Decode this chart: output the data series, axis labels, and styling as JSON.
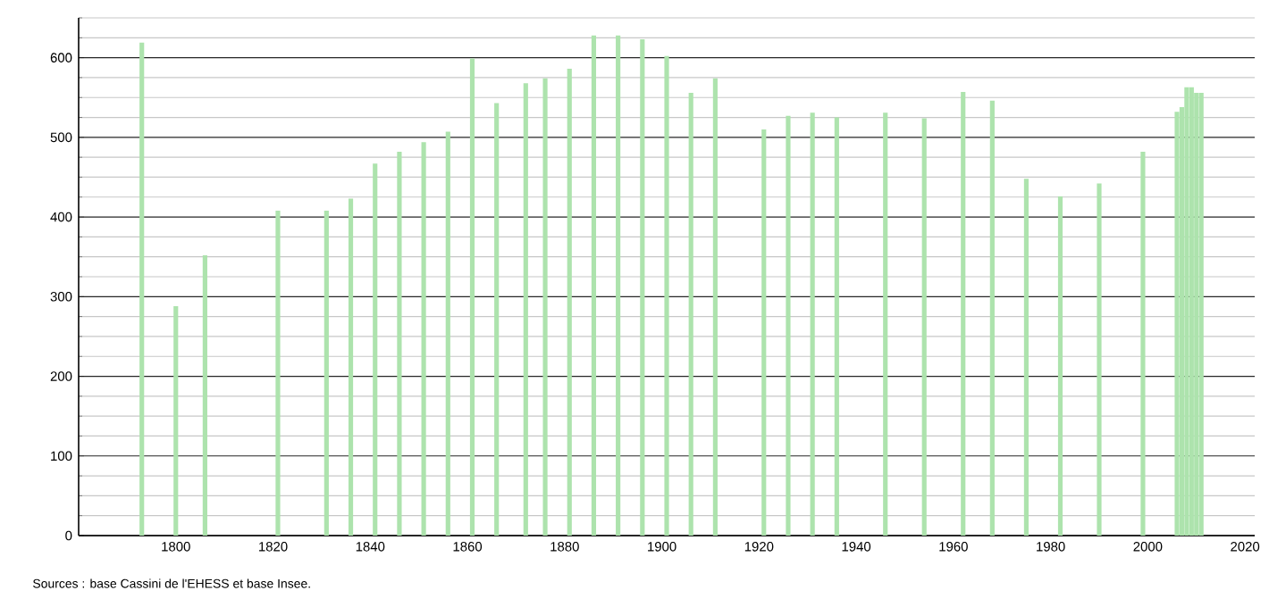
{
  "chart_data": {
    "type": "bar",
    "color": "#ade3ad",
    "x": [
      1793,
      1800,
      1806,
      1821,
      1831,
      1836,
      1841,
      1846,
      1851,
      1856,
      1861,
      1866,
      1872,
      1876,
      1881,
      1886,
      1891,
      1896,
      1901,
      1906,
      1911,
      1921,
      1926,
      1931,
      1936,
      1946,
      1954,
      1962,
      1968,
      1975,
      1982,
      1990,
      1999,
      2006,
      2007,
      2008,
      2009,
      2010,
      2011
    ],
    "values": [
      619,
      288,
      352,
      408,
      408,
      423,
      467,
      482,
      494,
      507,
      599,
      543,
      568,
      574,
      586,
      628,
      628,
      623,
      602,
      556,
      574,
      510,
      527,
      531,
      525,
      531,
      524,
      557,
      546,
      448,
      426,
      442,
      482,
      532,
      538,
      563,
      563,
      556,
      556
    ],
    "xlim": [
      1780,
      2022
    ],
    "ylim": [
      0,
      650
    ],
    "xticks": [
      1800,
      1820,
      1840,
      1860,
      1880,
      1900,
      1920,
      1940,
      1960,
      1980,
      2000,
      2020
    ],
    "yticks": [
      0,
      {
        "value": 25,
        "label": null
      },
      {
        "value": 50,
        "label": null
      },
      {
        "value": 75,
        "label": null
      },
      100,
      {
        "value": 125,
        "label": null
      },
      {
        "value": 150,
        "label": null
      },
      {
        "value": 175,
        "label": null
      },
      200,
      {
        "value": 225,
        "label": null
      },
      {
        "value": 250,
        "label": null
      },
      {
        "value": 275,
        "label": null
      },
      300,
      {
        "value": 325,
        "label": null
      },
      {
        "value": 350,
        "label": null
      },
      {
        "value": 375,
        "label": null
      },
      400,
      {
        "value": 425,
        "label": null
      },
      {
        "value": 450,
        "label": null
      },
      {
        "value": 475,
        "label": null
      },
      500,
      {
        "value": 525,
        "label": null
      },
      {
        "value": 550,
        "label": null
      },
      {
        "value": 575,
        "label": null
      },
      600,
      {
        "value": 625,
        "label": null
      },
      {
        "value": 650,
        "label": null
      }
    ],
    "grid": "y",
    "annotations": [
      "Sources : base Cassini de l'EHESS et base Insee."
    ]
  }
}
